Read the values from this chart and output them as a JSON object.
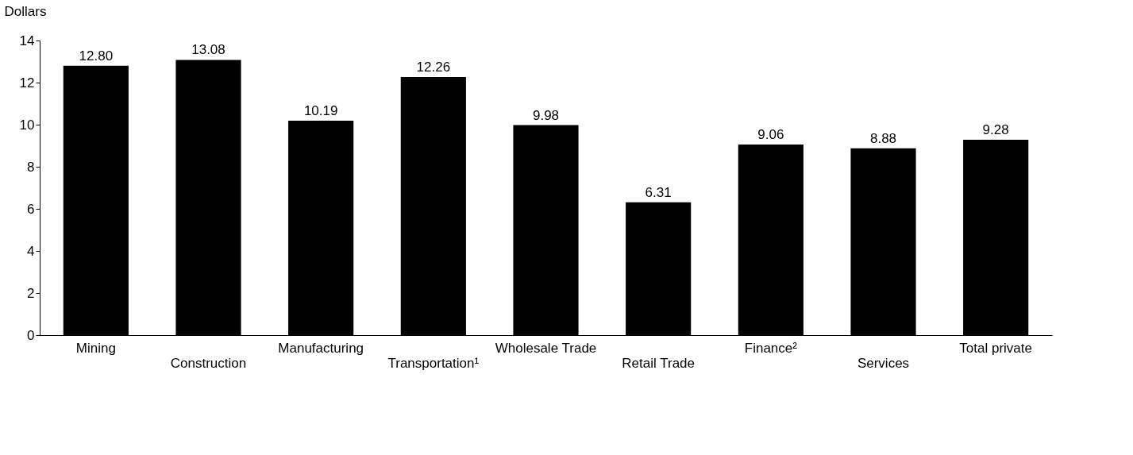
{
  "chart_data": {
    "type": "bar",
    "ylabel": "Dollars",
    "categories": [
      "Mining",
      "Construction",
      "Manufacturing",
      "Transportation¹",
      "Wholesale Trade",
      "Retail Trade",
      "Finance²",
      "Services",
      "Total private"
    ],
    "values": [
      12.8,
      13.08,
      10.19,
      12.26,
      9.98,
      6.31,
      9.06,
      8.88,
      9.28
    ],
    "value_labels": [
      "12.80",
      "13.08",
      "10.19",
      "12.26",
      "9.98",
      "6.31",
      "9.06",
      "8.88",
      "9.28"
    ],
    "color": "#000000",
    "ylim": [
      0,
      14
    ],
    "yticks": [
      0,
      2,
      4,
      6,
      8,
      10,
      12,
      14
    ],
    "grid": false
  }
}
